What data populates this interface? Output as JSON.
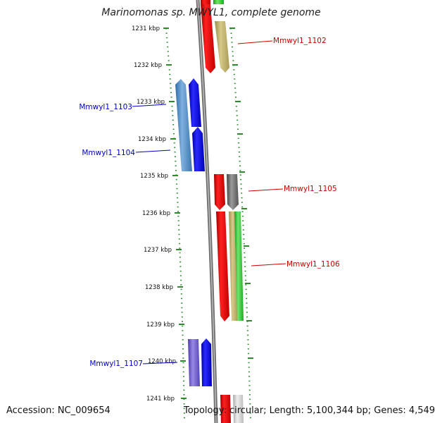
{
  "title": "Marinomonas sp. MWYL1, complete genome",
  "footer": {
    "accession": "Accession: NC_009654",
    "stats": "Topology: circular; Length: 5,100,344 bp; Genes: 4,549"
  },
  "ticks": [
    {
      "kbp": 1231,
      "label": "1231 kbp"
    },
    {
      "kbp": 1232,
      "label": "1232 kbp"
    },
    {
      "kbp": 1233,
      "label": "1233 kbp"
    },
    {
      "kbp": 1234,
      "label": "1234 kbp"
    },
    {
      "kbp": 1235,
      "label": "1235 kbp"
    },
    {
      "kbp": 1236,
      "label": "1236 kbp"
    },
    {
      "kbp": 1237,
      "label": "1237 kbp"
    },
    {
      "kbp": 1238,
      "label": "1238 kbp"
    },
    {
      "kbp": 1239,
      "label": "1239 kbp"
    },
    {
      "kbp": 1240,
      "label": "1240 kbp"
    },
    {
      "kbp": 1241,
      "label": "1241 kbp"
    }
  ],
  "labels": [
    {
      "text": "Mmwyl1_1102",
      "strand": "forward",
      "color": "#cc0000"
    },
    {
      "text": "Mmwyl1_1103",
      "strand": "reverse",
      "color": "#0000cc"
    },
    {
      "text": "Mmwyl1_1104",
      "strand": "reverse",
      "color": "#0000cc"
    },
    {
      "text": "Mmwyl1_1105",
      "strand": "forward",
      "color": "#cc0000"
    },
    {
      "text": "Mmwyl1_1106",
      "strand": "forward",
      "color": "#cc0000"
    },
    {
      "text": "Mmwyl1_1107",
      "strand": "reverse",
      "color": "#0000cc"
    }
  ],
  "colors": {
    "backbone": "#888888",
    "ticks": "#2d8a2d",
    "cds": "#ff0000",
    "cds_reverse": "#0000ff",
    "gene": "#c2b46e",
    "rna": "#33cc33",
    "cog_blue": "#4a8ac8",
    "cog_gray": "#777777",
    "cog_violet": "#6a5acd"
  }
}
